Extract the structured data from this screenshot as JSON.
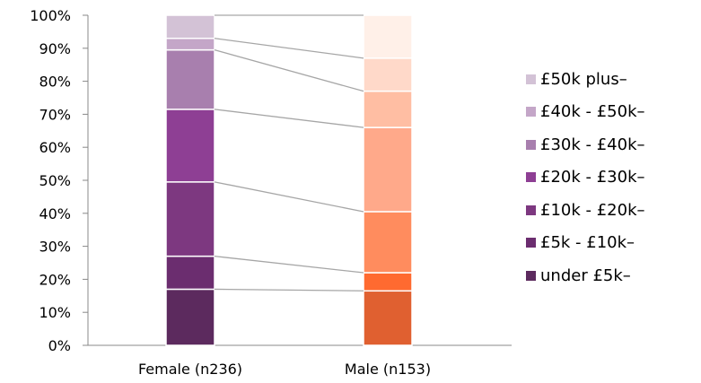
{
  "chart_data": {
    "type": "bar",
    "stacked": true,
    "percent": true,
    "categories": [
      "Female (n236)",
      "Male (n153)"
    ],
    "series": [
      {
        "name": "under £5k–",
        "values": [
          17,
          16.5
        ],
        "colors": [
          "#5c2a5e",
          "#e06030"
        ]
      },
      {
        "name": "£5k - £10k–",
        "values": [
          10,
          5.5
        ],
        "colors": [
          "#6b2d6f",
          "#ff6a30"
        ]
      },
      {
        "name": "£10k - £20k–",
        "values": [
          22.5,
          18.5
        ],
        "colors": [
          "#7d3880",
          "#ff8c5e"
        ]
      },
      {
        "name": "£20k - £30k–",
        "values": [
          22,
          25.5
        ],
        "colors": [
          "#8e3f94",
          "#ffa98a"
        ]
      },
      {
        "name": "£30k - £40k–",
        "values": [
          18,
          11
        ],
        "colors": [
          "#a87fae",
          "#ffbea3"
        ]
      },
      {
        "name": "£40k - £50k–",
        "values": [
          3.5,
          10
        ],
        "colors": [
          "#c4a6c8",
          "#ffd9c9"
        ]
      },
      {
        "name": "£50k plus–",
        "values": [
          7,
          13
        ],
        "colors": [
          "#d3c2d6",
          "#fff0e8"
        ]
      }
    ],
    "yticks": [
      "0%",
      "10%",
      "20%",
      "30%",
      "40%",
      "50%",
      "60%",
      "70%",
      "80%",
      "90%",
      "100%"
    ],
    "ylim": [
      0,
      100
    ],
    "legend_position": "right",
    "series_lines": true,
    "grid": false
  }
}
